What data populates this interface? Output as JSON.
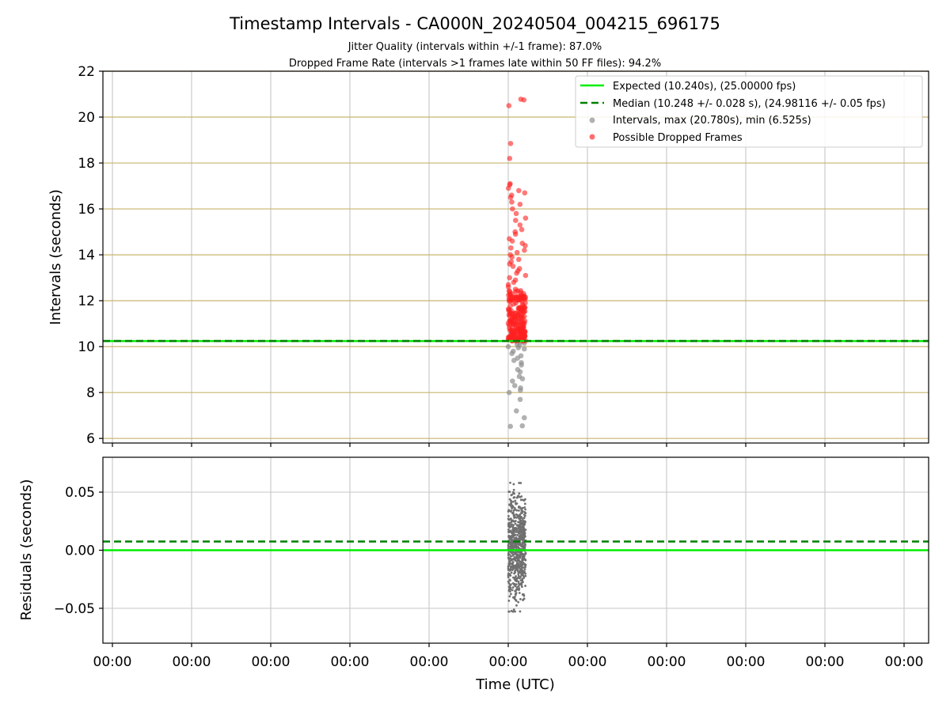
{
  "chart_data": [
    {
      "type": "scatter",
      "title": "Timestamp Intervals - CA000N_20240504_004215_696175",
      "subtitle_lines": [
        "Jitter Quality (intervals within +/-1 frame): 87.0%",
        "Dropped Frame Rate (intervals >1 frames late within 50 FF files): 94.2%"
      ],
      "xlabel": "",
      "ylabel": "Intervals (seconds)",
      "ylim": [
        5.8,
        22
      ],
      "yticks": [
        6,
        8,
        10,
        12,
        14,
        16,
        18,
        20,
        22
      ],
      "hgrid_lines": [
        6,
        8,
        10,
        12,
        14,
        16,
        18,
        20,
        22
      ],
      "hgrid_color": "#c8b46e",
      "vgrid_color": "#cccccc",
      "legend_position": "upper right",
      "legend": [
        {
          "label": "Expected (10.240s), (25.00000 fps)",
          "kind": "line",
          "color": "#00ee00",
          "dash": false
        },
        {
          "label": "Median (10.248 +/- 0.028 s), (24.98116 +/- 0.05 fps)",
          "kind": "line",
          "color": "#008000",
          "dash": true
        },
        {
          "label": "Intervals, max (20.780s), min (6.525s)",
          "kind": "point",
          "color": "#909090"
        },
        {
          "label": "Possible Dropped Frames",
          "kind": "point",
          "color": "#ff3030"
        }
      ],
      "expected_interval": 10.24,
      "median_interval": 10.248,
      "max_interval": 20.78,
      "min_interval": 6.525,
      "cluster_x_range": [
        0.0,
        0.2
      ],
      "grey_intervals": [
        10.0,
        9.9,
        9.8,
        9.7,
        9.6,
        9.5,
        9.4,
        9.3,
        9.2,
        9.0,
        8.9,
        8.7,
        8.6,
        8.5,
        8.3,
        8.2,
        8.1,
        8.0,
        7.7,
        7.2,
        6.9,
        6.55,
        6.525,
        10.1,
        10.15,
        10.2,
        10.05,
        9.95
      ],
      "red_intervals": [
        20.78,
        20.75,
        20.5,
        18.85,
        18.2,
        17.1,
        17.05,
        16.9,
        16.8,
        16.7,
        16.6,
        16.5,
        16.3,
        16.2,
        16.0,
        15.8,
        15.6,
        15.5,
        15.3,
        15.1,
        15.0,
        14.9,
        14.7,
        14.6,
        14.5,
        14.4,
        14.3,
        14.2,
        14.1,
        14.0,
        13.9,
        13.8,
        13.7,
        13.6,
        13.5,
        13.4,
        13.3,
        13.2,
        13.1,
        13.0,
        12.9,
        12.8,
        12.7,
        12.6,
        12.5,
        12.4,
        12.3,
        12.2,
        12.1,
        12.0,
        11.9,
        11.8,
        11.7,
        11.6,
        11.5,
        11.4,
        11.3,
        11.2,
        11.1,
        11.0,
        10.9,
        10.8,
        10.7,
        10.6,
        10.5,
        10.4,
        10.3
      ],
      "colors": {
        "grey": "#909090",
        "red": "#ff2020",
        "expected": "#00ee00",
        "median": "#008000"
      }
    },
    {
      "type": "scatter",
      "xlabel": "Time (UTC)",
      "ylabel": "Residuals (seconds)",
      "ylim": [
        -0.08,
        0.08
      ],
      "yticks": [
        -0.05,
        0.0,
        0.05
      ],
      "ytick_labels": [
        "−0.05",
        "0.00",
        "0.05"
      ],
      "xticks": 11,
      "xtick_labels": [
        "00:00",
        "00:00",
        "00:00",
        "00:00",
        "00:00",
        "00:00",
        "00:00",
        "00:00",
        "00:00",
        "00:00",
        "00:00"
      ],
      "expected_residual": 0.0,
      "median_residual": 0.0075,
      "residual_range": [
        -0.08,
        0.07
      ],
      "point_color": "#707070"
    }
  ]
}
